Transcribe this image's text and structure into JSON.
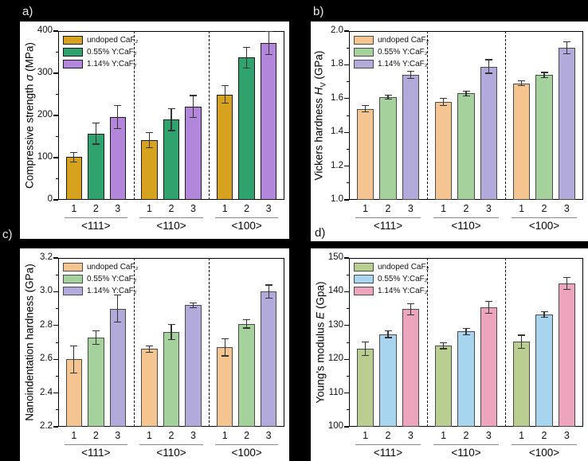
{
  "page": {
    "background": "#000000",
    "panel_bg": "#ffffff",
    "panel_letters": [
      "a)",
      "b)",
      "c)",
      "d)"
    ]
  },
  "chart_data": [
    {
      "id": "a",
      "type": "bar",
      "panel_letter": "a)",
      "ylabel": {
        "prefix": "Compressive strength ",
        "symbol": "σ",
        "subscript": "",
        "suffix": " (MPa)"
      },
      "ylim": [
        0,
        400
      ],
      "yticks": [
        {
          "v": 0,
          "t": "0"
        },
        {
          "v": 100,
          "t": "100"
        },
        {
          "v": 200,
          "t": "200"
        },
        {
          "v": 300,
          "t": "300"
        },
        {
          "v": 400,
          "t": "400"
        }
      ],
      "categories": [
        "<111>",
        "<110>",
        "<100>"
      ],
      "bar_labels": [
        "1",
        "2",
        "3"
      ],
      "grid": false,
      "legend_position": "top-left",
      "group_separator": "dashed",
      "series": [
        {
          "name": "undoped CaF₂",
          "color": "#D7A21E",
          "border": "#1a1a1a",
          "pattern": "dots",
          "values": [
            101,
            142,
            250
          ],
          "errors": [
            11,
            18,
            20
          ]
        },
        {
          "name": "0.55% Y:CaF₂",
          "color": "#2FA26E",
          "border": "#1a1a1a",
          "pattern": "dots",
          "values": [
            157,
            190,
            337
          ],
          "errors": [
            25,
            26,
            24
          ]
        },
        {
          "name": "1.14% Y:CaF₂",
          "color": "#B287DB",
          "border": "#1a1a1a",
          "pattern": "dots",
          "values": [
            196,
            221,
            372
          ],
          "errors": [
            27,
            26,
            27
          ]
        }
      ]
    },
    {
      "id": "b",
      "type": "bar",
      "panel_letter": "b)",
      "ylabel": {
        "prefix": "Vickers hardness ",
        "symbol": "H",
        "subscript": "V",
        "suffix": " (GPa)"
      },
      "ylim": [
        1.0,
        2.0
      ],
      "yticks": [
        {
          "v": 1.0,
          "t": "1.0"
        },
        {
          "v": 1.2,
          "t": "1.2"
        },
        {
          "v": 1.4,
          "t": "1.4"
        },
        {
          "v": 1.6,
          "t": "1.6"
        },
        {
          "v": 1.8,
          "t": "1.8"
        },
        {
          "v": 2.0,
          "t": "2.0"
        }
      ],
      "categories": [
        "<111>",
        "<110>",
        "<100>"
      ],
      "bar_labels": [
        "1",
        "2",
        "3"
      ],
      "grid": false,
      "legend_position": "top-left",
      "group_separator": "dashed",
      "series": [
        {
          "name": "undoped CaF₂",
          "color": "#F5C591",
          "border": "#4a4a4a",
          "pattern": "dots",
          "values": [
            1.54,
            1.58,
            1.69
          ],
          "errors": [
            0.02,
            0.02,
            0.015
          ]
        },
        {
          "name": "0.55% Y:CaF₂",
          "color": "#A5D29C",
          "border": "#4a4a4a",
          "pattern": "dots",
          "values": [
            1.61,
            1.63,
            1.74
          ],
          "errors": [
            0.012,
            0.015,
            0.015
          ]
        },
        {
          "name": "1.14% Y:CaF₂",
          "color": "#B2AADA",
          "border": "#4a4a4a",
          "pattern": "dots",
          "values": [
            1.74,
            1.79,
            1.9
          ],
          "errors": [
            0.022,
            0.04,
            0.035
          ]
        }
      ]
    },
    {
      "id": "c",
      "type": "bar",
      "panel_letter": "c)",
      "ylabel": {
        "prefix": "Nanoindentation hardness (GPa)",
        "symbol": "",
        "subscript": "",
        "suffix": ""
      },
      "ylim": [
        2.2,
        3.2
      ],
      "yticks": [
        {
          "v": 2.2,
          "t": "2.2"
        },
        {
          "v": 2.4,
          "t": "2.4"
        },
        {
          "v": 2.6,
          "t": "2.6"
        },
        {
          "v": 2.8,
          "t": "2.8"
        },
        {
          "v": 3.0,
          "t": "3.0"
        },
        {
          "v": 3.2,
          "t": "3.2"
        }
      ],
      "categories": [
        "<111>",
        "<110>",
        "<100>"
      ],
      "bar_labels": [
        "1",
        "2",
        "3"
      ],
      "grid": false,
      "legend_position": "top-left",
      "group_separator": "dashed",
      "series": [
        {
          "name": "undoped CaF₂",
          "color": "#F5C591",
          "border": "#4a4a4a",
          "pattern": "crosshatch",
          "values": [
            2.6,
            2.66,
            2.67
          ],
          "errors": [
            0.08,
            0.02,
            0.05
          ]
        },
        {
          "name": "0.55% Y:CaF₂",
          "color": "#A5D29C",
          "border": "#4a4a4a",
          "pattern": "crosshatch",
          "values": [
            2.73,
            2.76,
            2.81
          ],
          "errors": [
            0.04,
            0.045,
            0.025
          ]
        },
        {
          "name": "1.14% Y:CaF₂",
          "color": "#B2AADA",
          "border": "#4a4a4a",
          "pattern": "crosshatch",
          "values": [
            2.9,
            2.92,
            3.0
          ],
          "errors": [
            0.08,
            0.015,
            0.04
          ]
        }
      ]
    },
    {
      "id": "d",
      "type": "bar",
      "panel_letter": "d)",
      "ylabel": {
        "prefix": "Young's modulus ",
        "symbol": "E",
        "subscript": "",
        "suffix": " (Gpa)"
      },
      "ylim": [
        100,
        150
      ],
      "yticks": [
        {
          "v": 100,
          "t": "100"
        },
        {
          "v": 110,
          "t": "110"
        },
        {
          "v": 120,
          "t": "120"
        },
        {
          "v": 130,
          "t": "130"
        },
        {
          "v": 140,
          "t": "140"
        },
        {
          "v": 150,
          "t": "150"
        }
      ],
      "categories": [
        "<111>",
        "<110>",
        "<100>"
      ],
      "bar_labels": [
        "1",
        "2",
        "3"
      ],
      "grid": false,
      "legend_position": "top-left",
      "group_separator": "dashed",
      "series": [
        {
          "name": "undoped CaF₂",
          "color": "#B9CE90",
          "border": "#4a4a4a",
          "pattern": "dashes",
          "values": [
            123.2,
            124.0,
            125.2
          ],
          "errors": [
            2.0,
            0.9,
            1.9
          ]
        },
        {
          "name": "0.55% Y:CaF₂",
          "color": "#A7D5EF",
          "border": "#4a4a4a",
          "pattern": "dashes",
          "values": [
            127.4,
            128.2,
            133.2
          ],
          "errors": [
            1.0,
            1.0,
            0.8
          ]
        },
        {
          "name": "1.14% Y:CaF₂",
          "color": "#EDA5BE",
          "border": "#4a4a4a",
          "pattern": "dashes",
          "values": [
            134.8,
            135.4,
            142.5
          ],
          "errors": [
            1.6,
            1.7,
            1.8
          ]
        }
      ]
    }
  ]
}
